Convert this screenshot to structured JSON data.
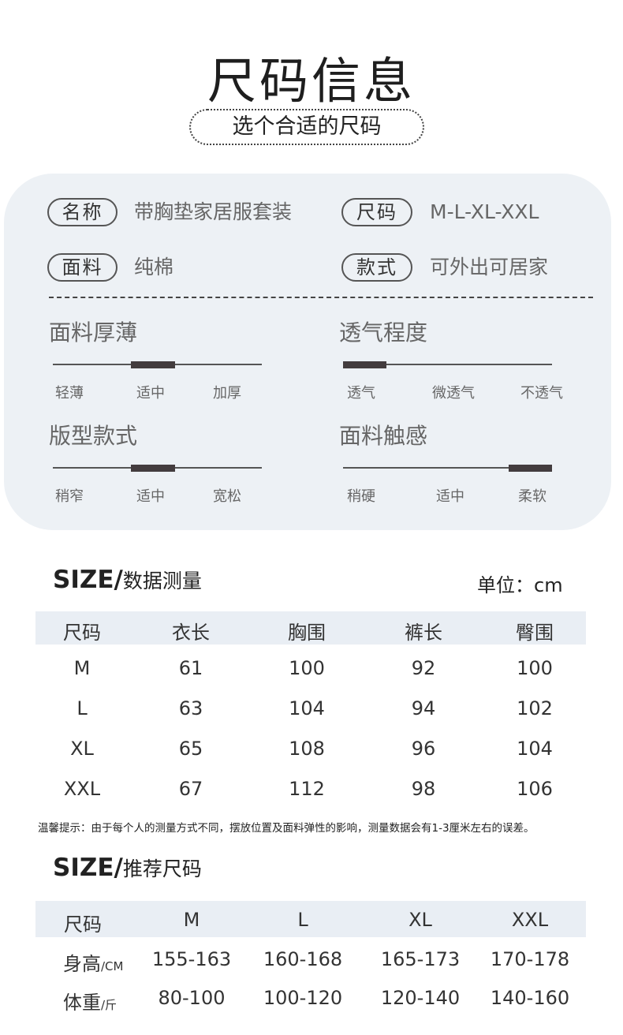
{
  "header": {
    "title": "尺码信息",
    "subtitle": "选个合适的尺码"
  },
  "info": {
    "rows": [
      {
        "label": "名称",
        "value": "带胸垫家居服套装"
      },
      {
        "label": "尺码",
        "value": "M-L-XL-XXL"
      },
      {
        "label": "面料",
        "value": "纯棉"
      },
      {
        "label": "款式",
        "value": "可外出可居家"
      }
    ],
    "ratings": [
      {
        "title": "面料厚薄",
        "options": [
          "轻薄",
          "适中",
          "加厚"
        ],
        "selected": "适中"
      },
      {
        "title": "透气程度",
        "options": [
          "透气",
          "微透气",
          "不透气"
        ],
        "selected": "透气"
      },
      {
        "title": "版型款式",
        "options": [
          "稍窄",
          "适中",
          "宽松"
        ],
        "selected": "适中"
      },
      {
        "title": "面料触感",
        "options": [
          "稍硬",
          "适中",
          "柔软"
        ],
        "selected": "柔软"
      }
    ],
    "indicator_color": "#433c3e",
    "panel_color": "#edf1f5"
  },
  "measure": {
    "title_prefix": "SIZE/",
    "title": "数据测量",
    "unit": "单位：cm",
    "headers": [
      "尺码",
      "衣长",
      "胸围",
      "裤长",
      "臀围"
    ],
    "rows": [
      [
        "M",
        "61",
        "100",
        "92",
        "100"
      ],
      [
        "L",
        "63",
        "104",
        "94",
        "102"
      ],
      [
        "XL",
        "65",
        "108",
        "96",
        "104"
      ],
      [
        "XXL",
        "67",
        "112",
        "98",
        "106"
      ]
    ],
    "note": "温馨提示：由于每个人的测量方式不同，摆放位置及面料弹性的影响，测量数据会有1-3厘米左右的误差。"
  },
  "recommend": {
    "title_prefix": "SIZE/",
    "title": "推荐尺码",
    "headers": [
      "尺码",
      "M",
      "L",
      "XL",
      "XXL"
    ],
    "rows": [
      {
        "label": "身高",
        "unit": "/CM",
        "values": [
          "155-163",
          "160-168",
          "165-173",
          "170-178"
        ]
      },
      {
        "label": "体重",
        "unit": "/斤",
        "values": [
          "80-100",
          "100-120",
          "120-140",
          "140-160"
        ]
      }
    ]
  }
}
